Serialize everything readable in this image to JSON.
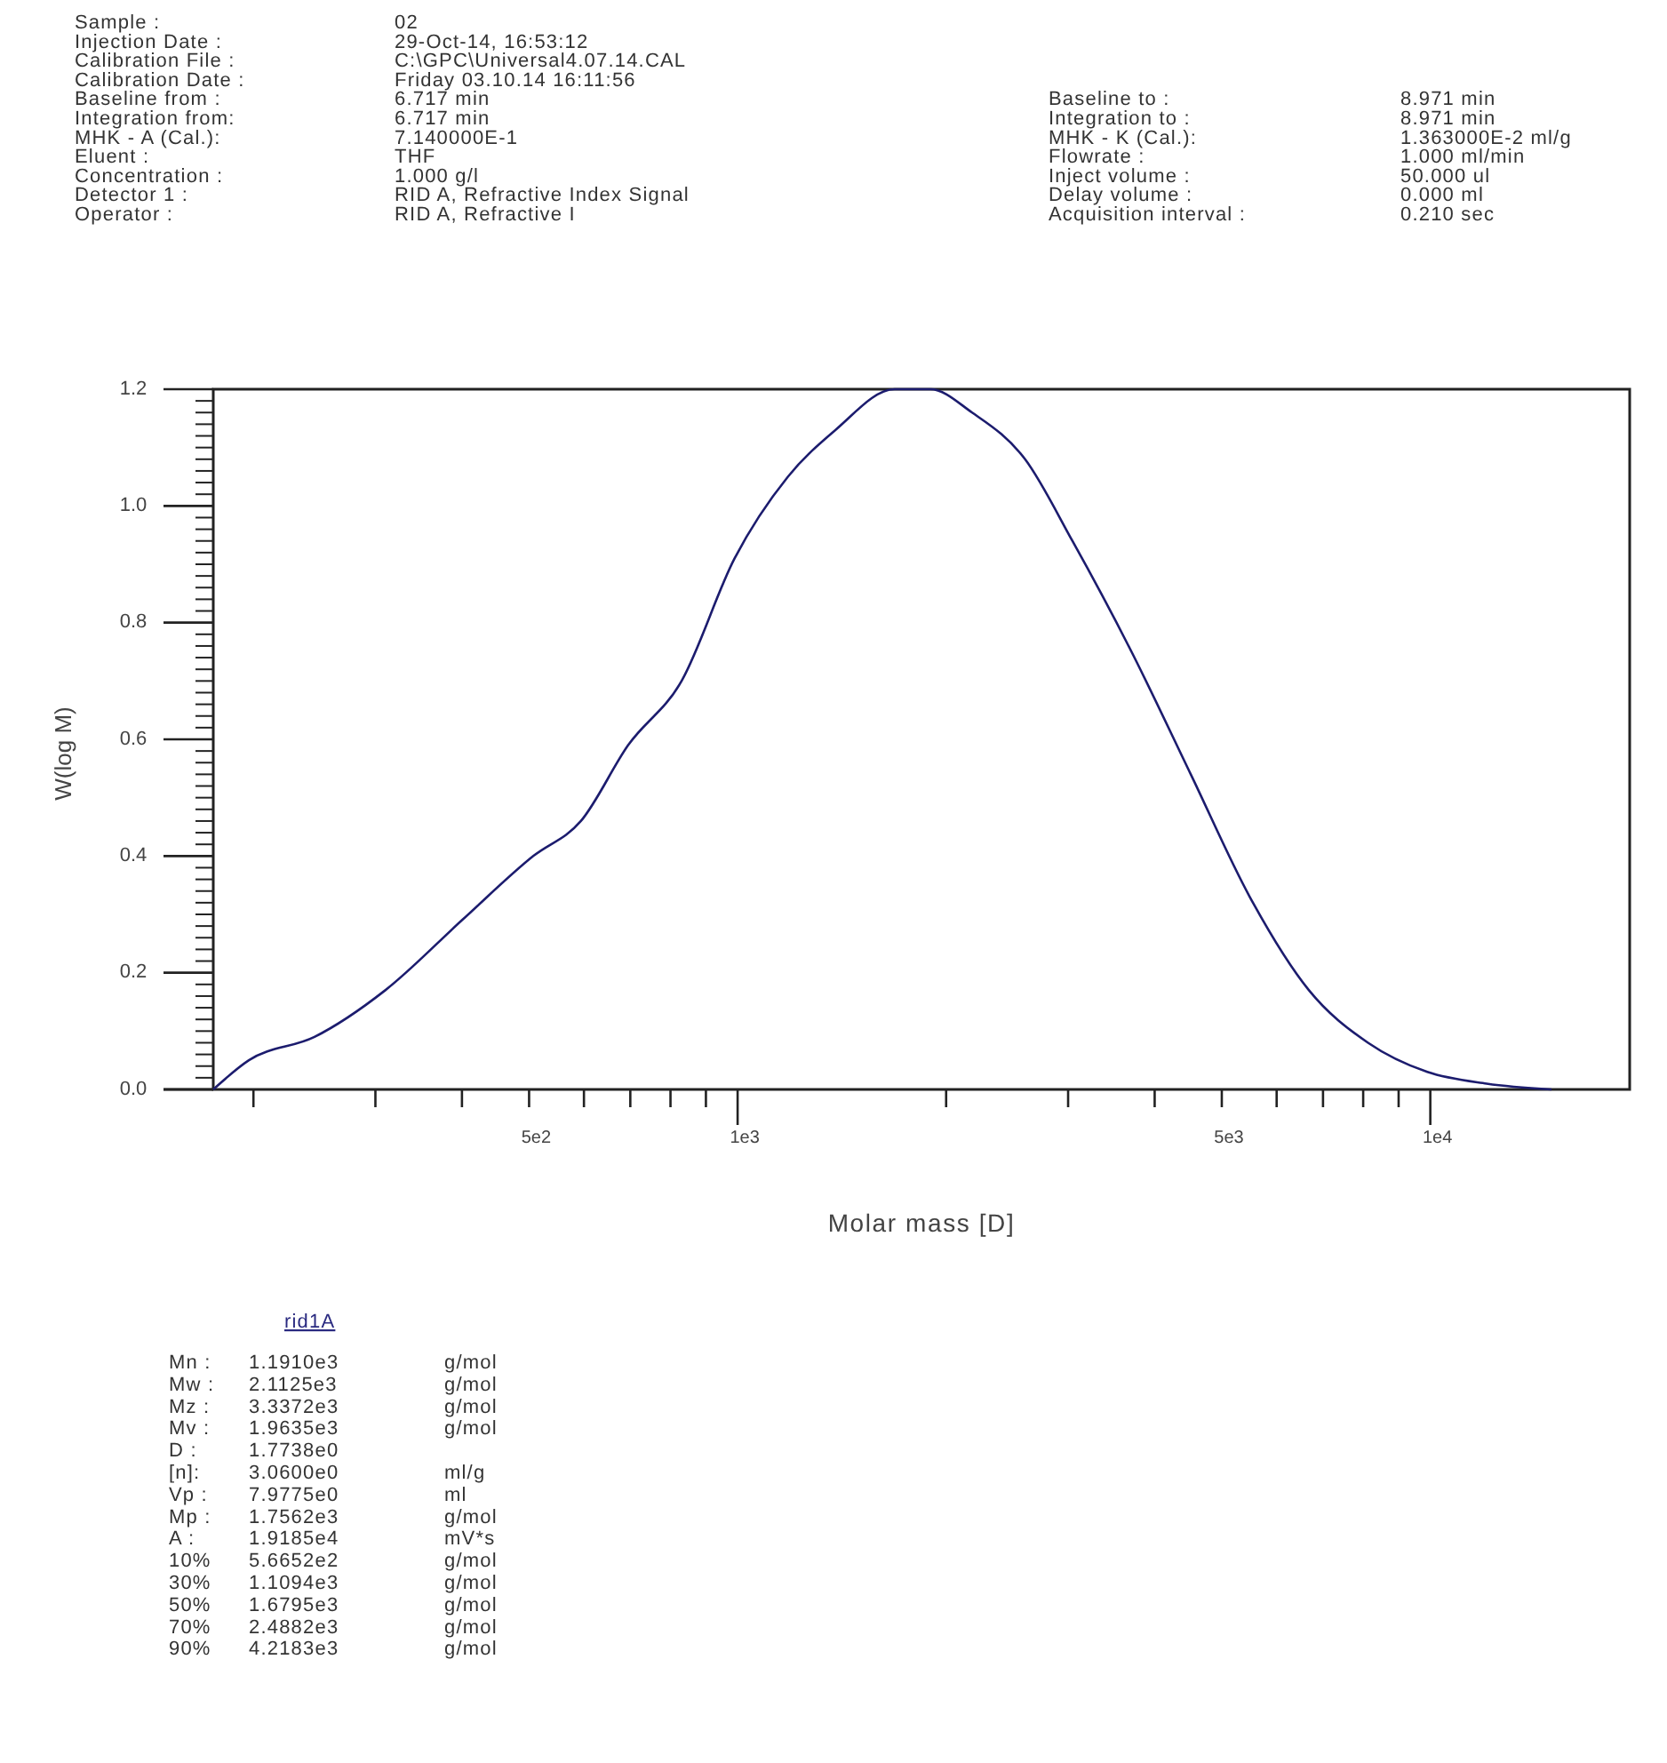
{
  "chart_data": {
    "type": "line",
    "xlabel": "Molar mass [D]",
    "ylabel": "W(log M)",
    "log": "x",
    "xlim": [
      175,
      19400
    ],
    "ylim": [
      0,
      1.2
    ],
    "xticks": [
      {
        "value": 200,
        "label": null
      },
      {
        "value": 300,
        "label": null
      },
      {
        "value": 400,
        "label": null
      },
      {
        "value": 500,
        "label": "5e2"
      },
      {
        "value": 600,
        "label": null
      },
      {
        "value": 700,
        "label": null
      },
      {
        "value": 800,
        "label": null
      },
      {
        "value": 900,
        "label": null
      },
      {
        "value": 1000,
        "label": "1e3"
      },
      {
        "value": 2000,
        "label": null
      },
      {
        "value": 3000,
        "label": null
      },
      {
        "value": 4000,
        "label": null
      },
      {
        "value": 5000,
        "label": "5e3"
      },
      {
        "value": 6000,
        "label": null
      },
      {
        "value": 7000,
        "label": null
      },
      {
        "value": 8000,
        "label": null
      },
      {
        "value": 9000,
        "label": null
      },
      {
        "value": 10000,
        "label": "1e4"
      }
    ],
    "yticks": [
      {
        "value": 0,
        "label": "0.0"
      },
      {
        "value": 0.2,
        "label": "0.2"
      },
      {
        "value": 0.4,
        "label": "0.4"
      },
      {
        "value": 0.6,
        "label": "0.6"
      },
      {
        "value": 0.8,
        "label": "0.8"
      },
      {
        "value": 1,
        "label": "1.0"
      },
      {
        "value": 1.2,
        "label": "1.2"
      }
    ],
    "series": [
      {
        "color": "#1c1c6e",
        "x": [
          175,
          197,
          245,
          310,
          400,
          507,
          594,
          695,
          830,
          990,
          1182,
          1384,
          1685,
          1897,
          2180,
          2600,
          3043,
          3704,
          4510,
          5487,
          6680,
          8130,
          9900,
          12060,
          14960
        ],
        "values": [
          0,
          0.05,
          0.09,
          0.17,
          0.29,
          0.4,
          0.46,
          0.59,
          0.7,
          0.91,
          1.05,
          1.13,
          1.2,
          1.2,
          1.16,
          1.08,
          0.94,
          0.75,
          0.54,
          0.33,
          0.17,
          0.08,
          0.03,
          0.01,
          0
        ]
      }
    ],
    "marker": "none",
    "line_style": "solid",
    "grid": false,
    "annotations": [
      "Sample :\t02",
      "Injection Date :\t29-Oct-14, 16:53:12",
      "Calibration File :\tC:\\GPC\\Universal4.07.14.CAL",
      "Calibration Date :\tFriday     03.10.14   16:11:56",
      "Baseline from :\t6.717 min",
      "Integration from:\t6.717 min",
      "MHK - A (Cal.):\t7.140000E-1",
      "Eluent :\tTHF",
      "Concentration :\t1.000 g/l",
      "Detector 1 :\tRID A, Refractive Index Signal",
      "Operator :\tRID A, Refractive I",
      "Baseline to :\t8.971 min",
      "Integration to :\t8.971 min",
      "MHK - K (Cal.):\t1.363000E-2 ml/g",
      "Flowrate :\t1.000 ml/min",
      "Inject volume :\t50.000 ul",
      "Delay volume :\t0.000 ml",
      "Acquisition interval :\t0.210 sec",
      "rid1A",
      "Mn :\t1.1910e3\tg/mol",
      "Mw :\t2.1125e3\tg/mol",
      "Mz :\t3.3372e3\tg/mol",
      "Mv :\t1.9635e3\tg/mol",
      "D :\t1.7738e0\t",
      "[n]:\t3.0600e0\tml/g",
      "Vp :\t7.9775e0\tml",
      "Mp :\t1.7562e3\tg/mol",
      "A :\t1.9185e4\tmV*s",
      "10%\t5.6652e2\tg/mol",
      "30%\t1.1094e3\tg/mol",
      "50%\t1.6795e3\tg/mol",
      "70%\t2.4882e3\tg/mol",
      "90%\t4.2183e3\tg/mol"
    ]
  }
}
